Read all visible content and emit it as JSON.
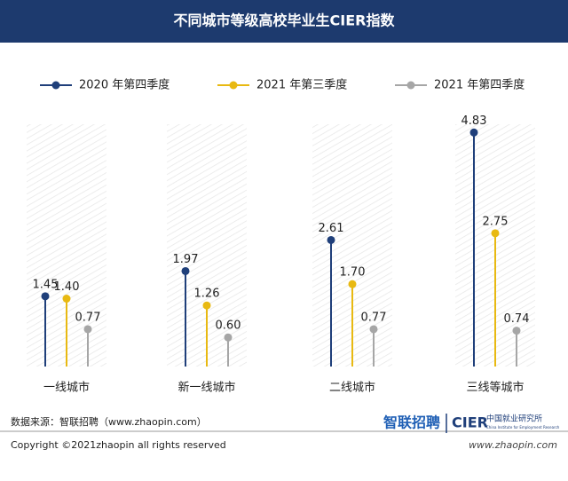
{
  "chart_data": {
    "type": "lollipop",
    "title": "不同城市等级高校毕业生CIER指数",
    "categories": [
      "一线城市",
      "新一线城市",
      "二线城市",
      "三线等城市"
    ],
    "series": [
      {
        "name": "2020 年第四季度",
        "color": "#1f3f7a",
        "values": [
          1.45,
          1.97,
          2.61,
          4.83
        ],
        "value_labels": [
          "1.45",
          "1.97",
          "2.61",
          "4.83"
        ]
      },
      {
        "name": "2021 年第三季度",
        "color": "#e8b912",
        "values": [
          1.4,
          1.26,
          1.7,
          2.75
        ],
        "value_labels": [
          "1.40",
          "1.26",
          "1.70",
          "2.75"
        ]
      },
      {
        "name": "2021 年第四季度",
        "color": "#a6a6a6",
        "values": [
          0.77,
          0.6,
          0.77,
          0.74
        ],
        "value_labels": [
          "0.77",
          "0.60",
          "0.77",
          "0.74"
        ]
      }
    ],
    "ylim": [
      0,
      5
    ]
  },
  "footer": {
    "source": "数据来源：智联招聘（www.zhaopin.com）",
    "logo_zhaopin": "智联招聘",
    "logo_cier": "CIER",
    "logo_cier_cn": "中国就业研究所",
    "logo_cier_en": "China Institute for Employment Research",
    "copyright": "Copyright ©2021zhaopin all rights reserved",
    "url": "www.zhaopin.com"
  }
}
